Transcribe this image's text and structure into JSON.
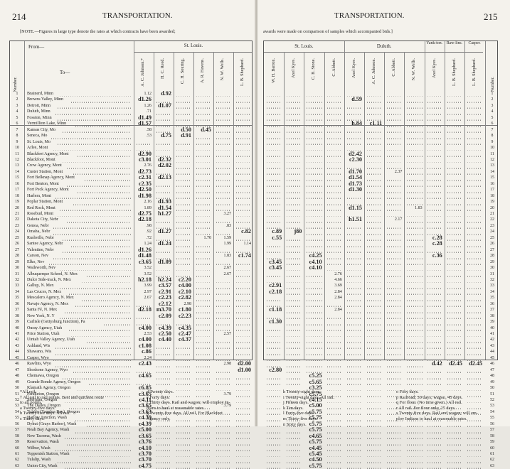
{
  "left_page": {
    "page_number": "214",
    "title": "TRANSPORTATION.",
    "note": "[NOTE.—Figures in large type denote the rates at which contracts have been awarded;",
    "from_label": "From—",
    "to_label": "To—",
    "number_label": "Number.",
    "group": "St. Louis.",
    "columns": [
      "A. C. Johnson.*",
      "H. C. Reed.",
      "C. H. Souring.",
      "A. R. Havens.",
      "N. W. Wells.",
      "L. B. Shephard."
    ],
    "destinations": [
      "Brainerd, Minn",
      "Browns Valley, Minn",
      "Detroit, Minn",
      "Duluth, Minn",
      "Fosston, Minn",
      "Vermillion Lake, Minn",
      "Kansas City, Mo",
      "Seneca, Mo",
      "St. Louis, Mo",
      "Arlee, Mont",
      "Blackfeet Agency, Mont",
      "Blackfoot, Mont",
      "Crow Agency, Mont",
      "Custer Station, Mont",
      "Fort Belknap Agency, Mont",
      "Fort Benton, Mont",
      "Fort Peck Agency, Mont",
      "Harlem, Mont",
      "Poplar Station, Mont",
      "Red Rock, Mont",
      "Rosebud, Mont",
      "Dakota City, Nebr",
      "Genoa, Nebr",
      "Omaha, Nebr",
      "Rushville, Nebr",
      "Santee Agency, Nebr",
      "Valentine, Nebr",
      "Carson, Nev",
      "Elko, Nev",
      "Wadsworth, Nev",
      "Albuquerque School, N. Mex",
      "Dulce Side-track, N. Mex",
      "Gallup, N. Mex",
      "Las Cruces, N. Mex",
      "Mescalero Agency, N. Mex",
      "Navajo Agency, N. Mex",
      "Santa Fé, N. Mex",
      "New York, N. Y",
      "Carlisle (Gettysburg Junction), Pa",
      "Ouray Agency, Utah",
      "Price Station, Utah",
      "Uintah Valley Agency, Utah",
      "Ashland, Wis",
      "Shawano, Wis",
      "Casper, Wyo",
      "Rawlins, Wyo",
      "Shoshone Agency, Wyo",
      "Chemawa, Oregon",
      "Grande Ronde Agency, Oregon",
      "Klamath Agency, Oregon",
      "Pendleton, Oregon",
      "Sheridan, Oregon",
      "The Dalles, Oregon",
      "Toledo (Yaquina Bay), Oregon",
      "Harlow Junction, Wash",
      "Dyhut (Grays Harbor), Wash",
      "Neah Bay Agency, Wash",
      "New Tacoma, Wash",
      "Reservation, Wash",
      "Wilbur, Wash",
      "Toppenish Station, Wash",
      "Tulalip, Wash",
      "Union City, Wash"
    ],
    "cells": {
      "0": {
        "0": "1.12",
        "1": "d.92"
      },
      "1": {
        "0": "d1.26"
      },
      "2": {
        "0": "1.26",
        "1": "d1.07"
      },
      "3": {
        "0": ".71"
      },
      "4": {
        "0": "d1.49"
      },
      "5": {
        "0": "d1.57"
      },
      "6": {
        "0": ".58",
        "2": "d.50",
        "3": "d.45"
      },
      "7": {
        "0": ".53",
        "1": "d.75",
        "2": "d.91"
      },
      "10": {
        "0": "d2.90"
      },
      "11": {
        "0": "c3.01",
        "1": "d2.32"
      },
      "12": {
        "0": "2.76",
        "1": "d2.02"
      },
      "13": {
        "0": "d2.73"
      },
      "14": {
        "0": "c2.31",
        "1": "d2.13"
      },
      "15": {
        "0": "c2.35"
      },
      "16": {
        "0": "d2.50"
      },
      "17": {
        "0": "d1.98"
      },
      "18": {
        "0": "2.16",
        "1": "d1.93"
      },
      "19": {
        "0": "1.89",
        "1": "d1.54"
      },
      "20": {
        "0": "d2.75",
        "1": "h1.27",
        "4": "3.27"
      },
      "21": {
        "0": "d2.18"
      },
      "22": {
        "0": ".98",
        "4": ".83"
      },
      "23": {
        "0": ".92",
        "1": "d1.27",
        "5": "c.82"
      },
      "24": {
        "0": ".72",
        "3": "1.70",
        "4": "1.59"
      },
      "25": {
        "0": "1.24",
        "1": "d1.24",
        "4": "1.99",
        "5": "1.14"
      },
      "26": {
        "0": "d1.26"
      },
      "27": {
        "0": "d1.48",
        "4": "1.83",
        "5": "c1.74"
      },
      "28": {
        "0": "c3.65",
        "1": "d1.09"
      },
      "29": {
        "0": "3.52",
        "4": "2.67"
      },
      "30": {
        "0": "3.52",
        "4": "2.67"
      },
      "31": {
        "0": "h2.18",
        "1": "h2.24",
        "2": "c2.20"
      },
      "32": {
        "0": "3.99",
        "1": "c3.57",
        "2": "c4.00"
      },
      "33": {
        "0": "2.97",
        "1": "c2.91",
        "2": "c2.10"
      },
      "34": {
        "0": "2.67",
        "1": "c2.23",
        "2": "c2.82"
      },
      "35": {
        "0": "",
        "1": "c2.12",
        "2": "2.98"
      },
      "36": {
        "0": "d2.18",
        "1": "m3.70",
        "2": "c1.80"
      },
      "37": {
        "1": "c2.09",
        "2": "c2.23"
      },
      "39": {
        "0": "c4.00",
        "1": "c4.39",
        "2": "c4.35"
      },
      "40": {
        "0": "2.53",
        "1": "c2.50",
        "2": "c2.47",
        "4": "2.57"
      },
      "41": {
        "0": "c4.00",
        "1": "c4.40",
        "2": "c4.37"
      },
      "42": {
        "0": "c1.08"
      },
      "43": {
        "0": "c.86"
      },
      "44": {
        "0": "2.24"
      },
      "45": {
        "0": "c2.43",
        "4": "2.98",
        "5": "d2.00"
      },
      "46": {
        "5": "d1.00"
      },
      "47": {
        "0": "c4.65"
      },
      "48": {
        "0": ""
      },
      "49": {
        "0": "c6.85"
      },
      "50": {
        "0": "c3.65",
        "4": "3.79"
      },
      "51": {
        "0": "c4.11"
      },
      "52": {
        "0": "c3.65",
        "4": "3.79"
      },
      "53": {
        "0": "c3.63"
      },
      "54": {
        "0": "c4.39"
      },
      "55": {
        "0": "c4.39"
      },
      "56": {
        "0": "c5.00"
      },
      "57": {
        "0": "c3.65"
      },
      "58": {
        "0": "c3.76"
      },
      "59": {
        "0": "c4.10"
      },
      "60": {
        "0": "c3.70"
      },
      "61": {
        "0": "c3.70"
      },
      "62": {
        "0": "c4.75"
      }
    },
    "footnotes_col1": [
      "*All rail.",
      "† All rail to rail points. Best and quickest route",
      "  to all points.",
      "a Twenty-five days.",
      "b Twenty-five days. All rail.",
      "c Thirty days."
    ],
    "footnotes_col2": [
      "d Twenty days.",
      "e Forty days.",
      "f Thirty days. Rail and wagon; will employ In-",
      "  dians to haul at reasonable rates.",
      "g Twenty-five days. All rail. For Blackfeet",
      "  Agency only."
    ]
  },
  "right_page": {
    "page_number": "215",
    "title": "TRANSPORTATION.",
    "note": "awards were made on comparison of samples which accompanied bids.]",
    "number_label": "Number.",
    "groups": [
      {
        "name": "St. Louis.",
        "span": 4
      },
      {
        "name": "Duluth.",
        "span": 4
      },
      {
        "name": "Yank-ton.",
        "span": 1
      },
      {
        "name": "Raw-lins.",
        "span": 1
      },
      {
        "name": "Casper.",
        "span": 1
      }
    ],
    "columns": [
      "W. H. Barron.",
      "Axel Kyes.",
      "C. B. Stone.",
      "C. Abbott.",
      "Axel Kyes.",
      "A. C. Johnson.",
      "C. Abbott.",
      "N. W. Wells.",
      "Axel Kyes.",
      "L. B. Shephard.",
      "L. B. Shephard."
    ],
    "cells": {
      "1": {
        "4": "d.59"
      },
      "5": {
        "4": "h.84",
        "5": "c1.11"
      },
      "10": {
        "4": "d2.42"
      },
      "11": {
        "4": "c2.30"
      },
      "13": {
        "4": "d1.70",
        "6": "2.37"
      },
      "14": {
        "4": "d1.54"
      },
      "15": {
        "4": "d1.73"
      },
      "16": {
        "4": "d1.30"
      },
      "19": {
        "4": "d1.15",
        "7": "1.83"
      },
      "21": {
        "4": "h1.51",
        "6": "2.17"
      },
      "23": {
        "0": "c.89",
        "1": "j80"
      },
      "24": {
        "0": "c.55",
        "8": "c.28"
      },
      "25": {
        "8": "c.28"
      },
      "27": {
        "2": "c4.25",
        "8": "c.36"
      },
      "28": {
        "0": "c3.45",
        "2": "c4.10"
      },
      "29": {
        "0": "c3.45",
        "2": "c4.10"
      },
      "30": {
        "3": "2.76"
      },
      "31": {
        "3": "4.66"
      },
      "32": {
        "0": "c2.91",
        "3": "3.69"
      },
      "33": {
        "0": "c2.18",
        "3": "2.84"
      },
      "34": {
        "3": "2.84"
      },
      "36": {
        "0": "c1.18",
        "3": "2.84"
      },
      "38": {
        "0": "c1.30"
      },
      "45": {
        "8": "d.42",
        "9": "d2.45",
        "10": "d2.45"
      },
      "46": {
        "0": "c2.80"
      },
      "47": {
        "2": "c5.25"
      },
      "48": {
        "2": "c5.65"
      },
      "49": {
        "2": "c3.25"
      },
      "50": {
        "2": "c5.75"
      },
      "51": {
        "2": "c4.15"
      },
      "52": {
        "2": "c5.00"
      },
      "53": {
        "2": "c5.75"
      },
      "54": {
        "2": "c5.75"
      },
      "55": {
        "2": "c5.75"
      },
      "56": {
        "2": "c5.75"
      },
      "57": {
        "2": "c4.65"
      },
      "58": {
        "2": "c5.75"
      },
      "59": {
        "2": "c4.45"
      },
      "60": {
        "2": "c5.45"
      },
      "61": {
        "2": "c4.50"
      },
      "62": {
        "2": "c5.75"
      }
    },
    "footnotes_col1": [
      "h Twenty-eight days.",
      "i Twenty-eight days. All rail.",
      "j Fifteen days.",
      "k Ten days.",
      "l Forty-five days.",
      "m Thirty-five days.",
      "n Sixty days."
    ],
    "footnotes_col2": [
      "o Fifty days.",
      "p Railroad, 30 days; wagon, 45 days.",
      "q For flour. (No time given.) All rail.",
      "r All rail. For flour only, 25 days.",
      "s Twenty-five days. Rail and wagon; will em-",
      "  ploy Indians to haul at reasonable rates."
    ]
  }
}
